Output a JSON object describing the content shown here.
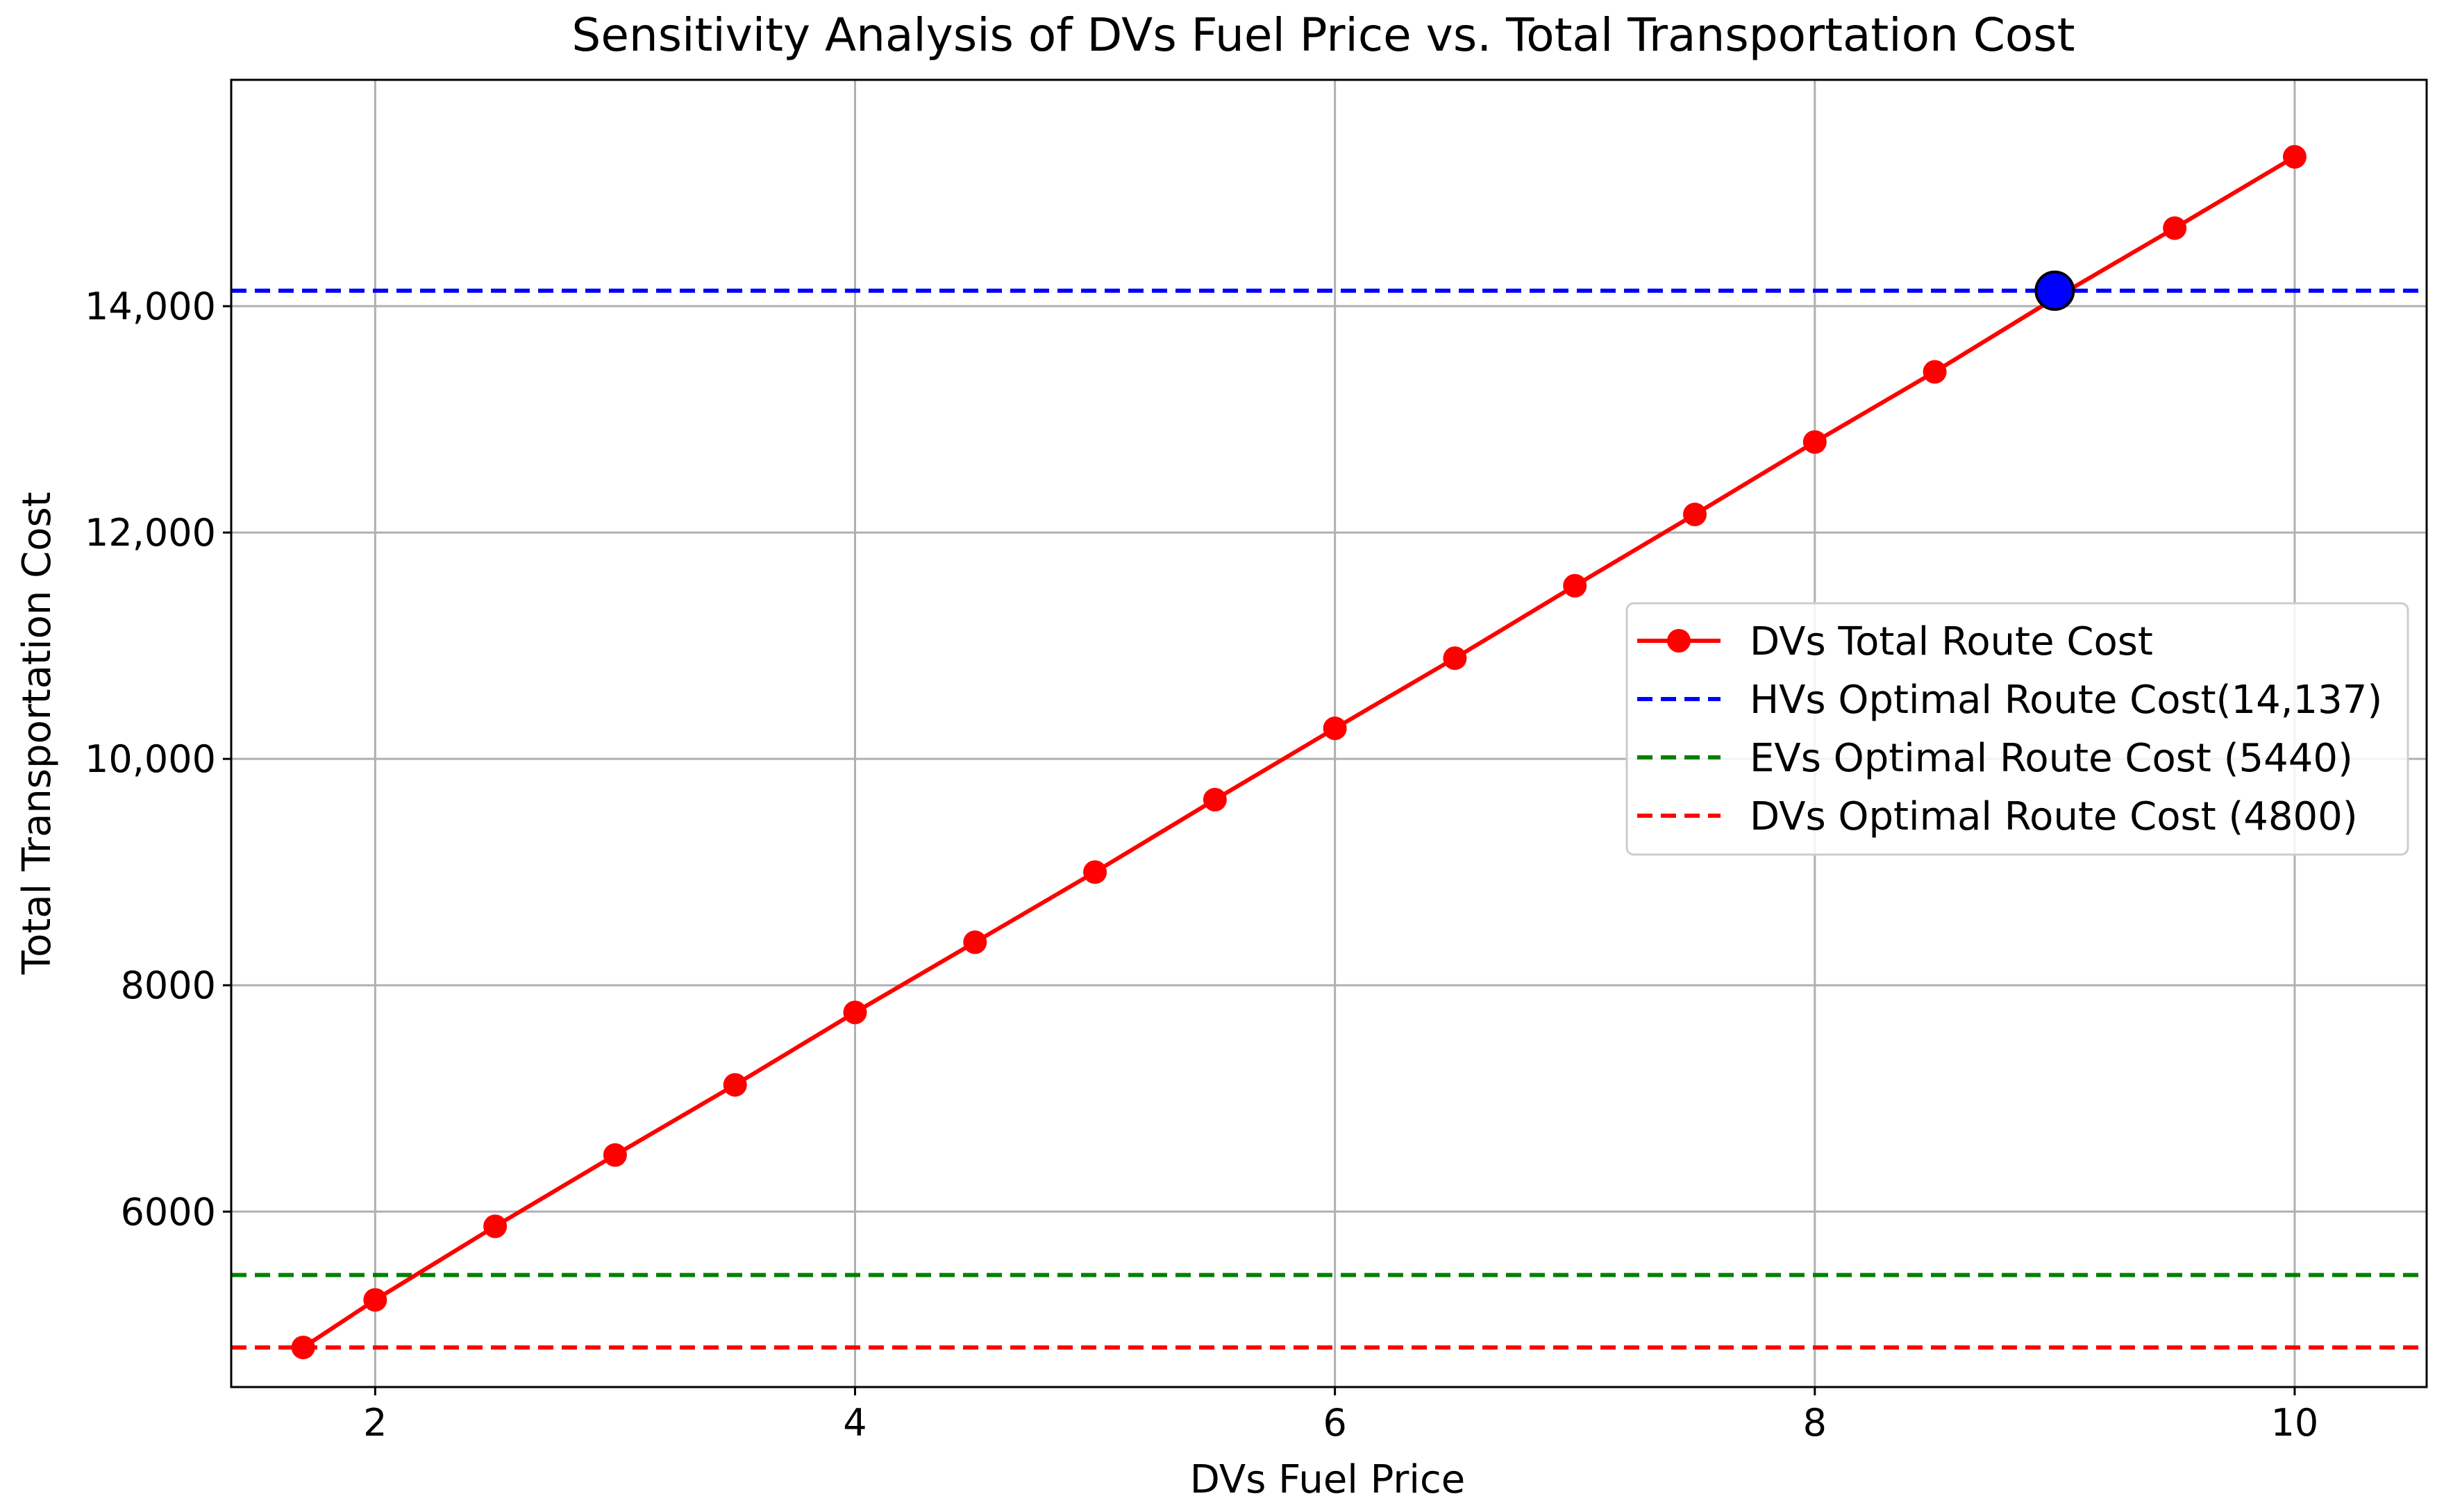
{
  "chart_data": {
    "type": "line",
    "title": "Sensitivity Analysis of DVs Fuel Price vs. Total Transportation Cost",
    "xlabel": "DVs Fuel Price",
    "ylabel": "Total Transportation Cost",
    "xlim": [
      1.4,
      10.55
    ],
    "ylim": [
      4450,
      16000
    ],
    "grid": true,
    "x_ticks": [
      {
        "value": 2,
        "label": "2"
      },
      {
        "value": 4,
        "label": "4"
      },
      {
        "value": 6,
        "label": "6"
      },
      {
        "value": 8,
        "label": "8"
      },
      {
        "value": 10,
        "label": "10"
      }
    ],
    "y_ticks": [
      {
        "value": 6000,
        "label": "6000"
      },
      {
        "value": 8000,
        "label": "8000"
      },
      {
        "value": 10000,
        "label": "10,000"
      },
      {
        "value": 12000,
        "label": "12,000"
      },
      {
        "value": 14000,
        "label": "14,000"
      }
    ],
    "series": [
      {
        "name": "DVs Total Route Cost",
        "color": "#ff0000",
        "style": "solid-with-markers",
        "x": [
          1.7,
          2.0,
          2.5,
          3.0,
          3.5,
          4.0,
          4.5,
          5.0,
          5.5,
          6.0,
          6.5,
          7.0,
          7.5,
          8.0,
          8.5,
          9.0,
          9.5,
          10.0
        ],
        "y": [
          4800,
          5220,
          5870,
          6500,
          7120,
          7760,
          8380,
          9000,
          9640,
          10270,
          10890,
          11530,
          12160,
          12800,
          13420,
          14070,
          14690,
          15320
        ]
      }
    ],
    "reference_lines": [
      {
        "name": "HVs Optimal Route Cost(14,137)",
        "value": 14137,
        "color": "#0000ff",
        "style": "dashed"
      },
      {
        "name": "EVs Optimal Route Cost (5440)",
        "value": 5440,
        "color": "#008000",
        "style": "dashed"
      },
      {
        "name": "DVs Optimal Route Cost (4800)",
        "value": 4800,
        "color": "#ff0000",
        "style": "dashed"
      }
    ],
    "highlight_point": {
      "x": 9.0,
      "y": 14137,
      "color": "#0000ff"
    },
    "legend_position": "center-right"
  }
}
